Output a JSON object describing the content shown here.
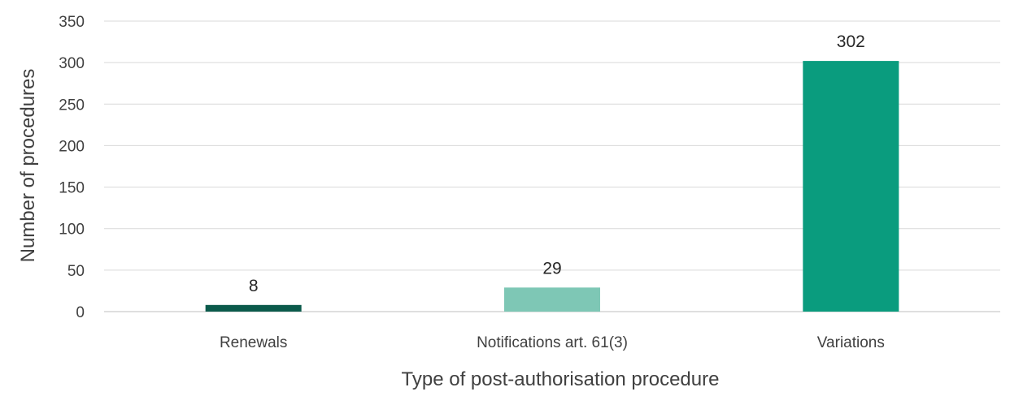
{
  "chart_data": {
    "type": "bar",
    "title": "",
    "xlabel": "Type of post-authorisation procedure",
    "ylabel": "Number of procedures",
    "categories": [
      "Renewals",
      "Notifications art. 61(3)",
      "Variations"
    ],
    "values": [
      8,
      29,
      302
    ],
    "value_labels": [
      "8",
      "29",
      "302"
    ],
    "bar_colors": [
      "#0b5a4b",
      "#7ec7b5",
      "#0a9c7e"
    ],
    "ylim": [
      0,
      350
    ],
    "yticks": [
      0,
      50,
      100,
      150,
      200,
      250,
      300,
      350
    ],
    "ytick_labels": [
      "0",
      "50",
      "100",
      "150",
      "200",
      "250",
      "300",
      "350"
    ],
    "grid": true,
    "legend": "none"
  }
}
